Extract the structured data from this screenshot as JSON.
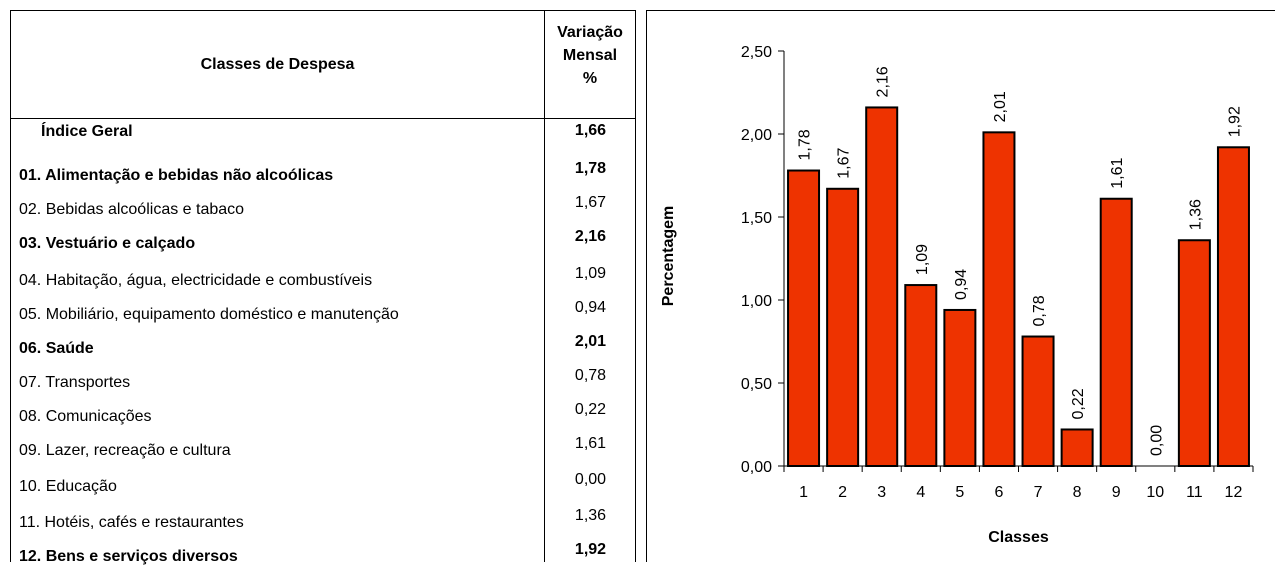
{
  "table": {
    "col1_header": "Classes de Despesa",
    "col2_header": [
      "Variação",
      "Mensal",
      "%"
    ],
    "rows": [
      {
        "label": "Índice Geral",
        "value": "1,66",
        "bold": true,
        "indent": true
      },
      {
        "label": "01. Alimentação e bebidas não alcoólicas",
        "value": "1,78",
        "bold": true
      },
      {
        "label": "02. Bebidas alcoólicas e tabaco",
        "value": "1,67",
        "bold": false
      },
      {
        "label": "03. Vestuário e calçado",
        "value": "2,16",
        "bold": true
      },
      {
        "label": "04. Habitação, água, electricidade e combustíveis",
        "value": "1,09",
        "bold": false
      },
      {
        "label": "05. Mobiliário, equipamento doméstico e manutenção",
        "value": "0,94",
        "bold": false
      },
      {
        "label": "06. Saúde",
        "value": "2,01",
        "bold": true
      },
      {
        "label": "07. Transportes",
        "value": "0,78",
        "bold": false
      },
      {
        "label": "08. Comunicações",
        "value": "0,22",
        "bold": false
      },
      {
        "label": "09. Lazer, recreação e cultura",
        "value": "1,61",
        "bold": false
      },
      {
        "label": "10. Educação",
        "value": "0,00",
        "bold": false
      },
      {
        "label": "11. Hotéis, cafés e restaurantes",
        "value": "1,36",
        "bold": false
      },
      {
        "label": "12. Bens e serviços diversos",
        "value": "1,92",
        "bold": true
      }
    ]
  },
  "chart_data": {
    "type": "bar",
    "categories": [
      "1",
      "2",
      "3",
      "4",
      "5",
      "6",
      "7",
      "8",
      "9",
      "10",
      "11",
      "12"
    ],
    "values": [
      1.78,
      1.67,
      2.16,
      1.09,
      0.94,
      2.01,
      0.78,
      0.22,
      1.61,
      0.0,
      1.36,
      1.92
    ],
    "data_labels": [
      "1,78",
      "1,67",
      "2,16",
      "1,09",
      "0,94",
      "2,01",
      "0,78",
      "0,22",
      "1,61",
      "0,00",
      "1,36",
      "1,92"
    ],
    "xlabel": "Classes",
    "ylabel": "Percentagem",
    "ylim": [
      0,
      2.5
    ],
    "yticks": [
      0,
      0.5,
      1.0,
      1.5,
      2.0,
      2.5
    ],
    "ytick_labels": [
      "0,00",
      "0,50",
      "1,00",
      "1,50",
      "2,00",
      "2,50"
    ],
    "grid": false,
    "bar_color": "#ee3300",
    "edge_color": "#000000"
  }
}
